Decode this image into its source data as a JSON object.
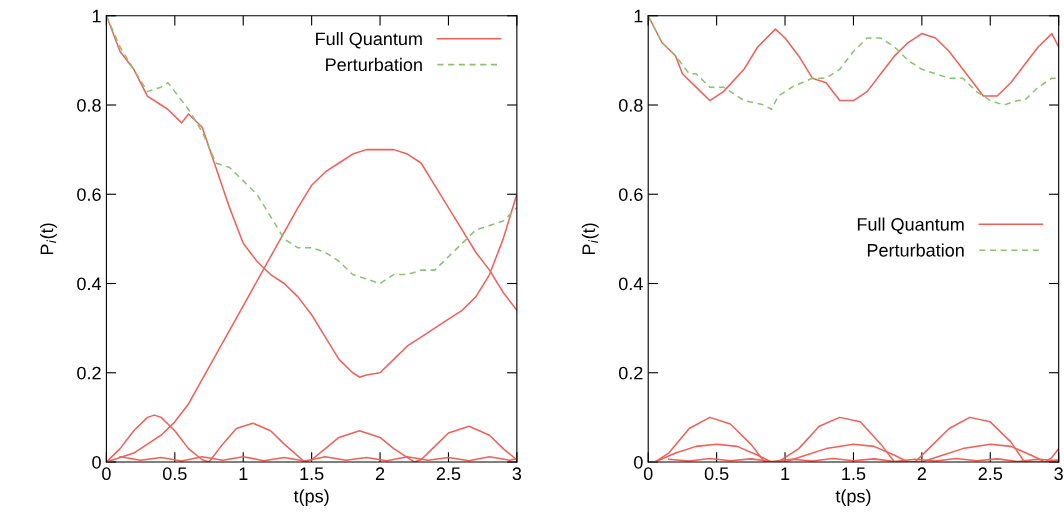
{
  "chart_data": [
    {
      "type": "line",
      "xlabel": "t(ps)",
      "ylabel": "P$_{i}$(t)",
      "xlim": [
        0,
        3
      ],
      "ylim": [
        0,
        1
      ],
      "xticks": [
        0,
        0.5,
        1,
        1.5,
        2,
        2.5,
        3
      ],
      "yticks": [
        0,
        0.2,
        0.4,
        0.6,
        0.8,
        1
      ],
      "legend": "top right",
      "grid": false,
      "series": [
        {
          "name": "Full Quantum",
          "color": "#f06058",
          "line_style": "solid",
          "x": [
            0,
            0.1,
            0.2,
            0.3,
            0.4,
            0.45,
            0.5,
            0.55,
            0.6,
            0.7,
            0.8,
            0.9,
            1.0,
            1.1,
            1.2,
            1.3,
            1.4,
            1.5,
            1.6,
            1.7,
            1.8,
            1.85,
            1.9,
            2.0,
            2.1,
            2.2,
            2.3,
            2.4,
            2.5,
            2.6,
            2.7,
            2.8,
            2.9,
            3.0
          ],
          "values": [
            1,
            0.92,
            0.88,
            0.82,
            0.8,
            0.79,
            0.775,
            0.76,
            0.78,
            0.75,
            0.66,
            0.57,
            0.49,
            0.45,
            0.42,
            0.4,
            0.37,
            0.33,
            0.28,
            0.23,
            0.2,
            0.19,
            0.195,
            0.2,
            0.23,
            0.26,
            0.28,
            0.3,
            0.32,
            0.34,
            0.37,
            0.42,
            0.5,
            0.6
          ]
        },
        {
          "color": "#f06058",
          "line_style": "solid",
          "x": [
            0,
            0.2,
            0.4,
            0.5,
            0.6,
            0.8,
            1.0,
            1.2,
            1.4,
            1.5,
            1.6,
            1.7,
            1.8,
            1.9,
            2.0,
            2.1,
            2.2,
            2.3,
            2.4,
            2.5,
            2.6,
            2.7,
            2.8,
            2.9,
            3.0
          ],
          "values": [
            0,
            0.02,
            0.06,
            0.09,
            0.13,
            0.24,
            0.35,
            0.46,
            0.57,
            0.62,
            0.65,
            0.67,
            0.69,
            0.7,
            0.7,
            0.7,
            0.69,
            0.67,
            0.62,
            0.57,
            0.52,
            0.47,
            0.43,
            0.38,
            0.34
          ]
        },
        {
          "color": "#f06058",
          "line_style": "solid",
          "x": [
            0,
            0.1,
            0.2,
            0.3,
            0.35,
            0.4,
            0.5,
            0.6,
            0.7,
            0.75,
            0.85,
            0.95,
            1.07,
            1.2,
            1.3,
            1.45,
            1.5,
            1.6,
            1.7,
            1.85,
            2.0,
            2.1,
            2.25,
            2.3,
            2.4,
            2.5,
            2.65,
            2.8,
            2.9,
            3.0
          ],
          "values": [
            0,
            0.03,
            0.07,
            0.1,
            0.105,
            0.1,
            0.07,
            0.03,
            0.005,
            0,
            0.04,
            0.075,
            0.087,
            0.07,
            0.04,
            0,
            0.005,
            0.03,
            0.055,
            0.07,
            0.055,
            0.03,
            0,
            0.005,
            0.035,
            0.065,
            0.08,
            0.06,
            0.03,
            0.005
          ]
        },
        {
          "color": "#f06058",
          "line_style": "solid",
          "x": [
            0.1,
            0.25,
            0.4,
            0.55,
            0.7,
            0.85,
            1.0,
            1.15,
            1.3,
            1.45,
            1.6,
            1.75,
            1.9,
            2.05,
            2.2,
            2.35,
            2.5,
            2.65,
            2.8,
            2.95,
            3.0
          ],
          "values": [
            0.012,
            0.004,
            0.01,
            0.002,
            0.012,
            0.004,
            0.012,
            0.003,
            0.01,
            0.002,
            0.012,
            0.004,
            0.01,
            0.003,
            0.012,
            0.004,
            0.01,
            0.003,
            0.012,
            0.004,
            0.008
          ]
        },
        {
          "name": "Perturbation",
          "color": "#88c470",
          "line_style": "dashed",
          "x": [
            0,
            0.1,
            0.2,
            0.3,
            0.4,
            0.45,
            0.5,
            0.6,
            0.7,
            0.8,
            0.9,
            1.0,
            1.1,
            1.2,
            1.3,
            1.4,
            1.5,
            1.6,
            1.7,
            1.8,
            1.9,
            2.0,
            2.1,
            2.2,
            2.3,
            2.4,
            2.5,
            2.6,
            2.7,
            2.8,
            2.9,
            3.0
          ],
          "values": [
            1,
            0.93,
            0.88,
            0.83,
            0.84,
            0.85,
            0.83,
            0.79,
            0.74,
            0.67,
            0.66,
            0.63,
            0.6,
            0.55,
            0.5,
            0.48,
            0.48,
            0.47,
            0.45,
            0.42,
            0.41,
            0.4,
            0.42,
            0.42,
            0.43,
            0.43,
            0.46,
            0.49,
            0.52,
            0.53,
            0.54,
            0.57
          ]
        }
      ]
    },
    {
      "type": "line",
      "xlabel": "t(ps)",
      "ylabel": "P$_{i}$(t)",
      "xlim": [
        0,
        3
      ],
      "ylim": [
        0,
        1
      ],
      "xticks": [
        0,
        0.5,
        1,
        1.5,
        2,
        2.5,
        3
      ],
      "yticks": [
        0,
        0.2,
        0.4,
        0.6,
        0.8,
        1
      ],
      "legend": "center right",
      "grid": false,
      "series": [
        {
          "name": "Full Quantum",
          "color": "#f06058",
          "line_style": "solid",
          "x": [
            0,
            0.1,
            0.2,
            0.25,
            0.35,
            0.45,
            0.55,
            0.7,
            0.8,
            0.93,
            1.0,
            1.1,
            1.2,
            1.3,
            1.4,
            1.5,
            1.6,
            1.7,
            1.8,
            1.9,
            2.0,
            2.1,
            2.2,
            2.3,
            2.35,
            2.45,
            2.55,
            2.65,
            2.75,
            2.85,
            2.95,
            3.0
          ],
          "values": [
            1,
            0.94,
            0.91,
            0.87,
            0.84,
            0.81,
            0.83,
            0.88,
            0.93,
            0.97,
            0.95,
            0.91,
            0.86,
            0.85,
            0.81,
            0.81,
            0.83,
            0.87,
            0.91,
            0.94,
            0.96,
            0.95,
            0.92,
            0.88,
            0.86,
            0.82,
            0.82,
            0.85,
            0.89,
            0.93,
            0.96,
            0.93
          ]
        },
        {
          "color": "#f06058",
          "line_style": "solid",
          "x": [
            0,
            0.05,
            0.15,
            0.3,
            0.45,
            0.6,
            0.75,
            0.85,
            0.95,
            1.1,
            1.25,
            1.4,
            1.55,
            1.7,
            1.8,
            1.95,
            2.05,
            2.2,
            2.35,
            2.5,
            2.65,
            2.75,
            2.9,
            2.95,
            3.0
          ],
          "values": [
            0,
            0,
            0.02,
            0.075,
            0.1,
            0.085,
            0.04,
            0,
            0,
            0.03,
            0.08,
            0.1,
            0.09,
            0.04,
            0,
            0,
            0.03,
            0.075,
            0.1,
            0.09,
            0.045,
            0,
            0,
            0.01,
            0.03
          ]
        },
        {
          "color": "#f06058",
          "line_style": "solid",
          "x": [
            0.05,
            0.2,
            0.35,
            0.5,
            0.65,
            0.8,
            0.9,
            1.0,
            1.15,
            1.3,
            1.5,
            1.65,
            1.8,
            1.9,
            2.0,
            2.15,
            2.3,
            2.5,
            2.65,
            2.8,
            2.9,
            3.0
          ],
          "values": [
            0,
            0.02,
            0.035,
            0.04,
            0.035,
            0.015,
            0,
            0,
            0.015,
            0.03,
            0.04,
            0.035,
            0.015,
            0,
            0,
            0.015,
            0.03,
            0.04,
            0.035,
            0.015,
            0,
            0.005
          ]
        },
        {
          "color": "#f06058",
          "line_style": "solid",
          "x": [
            0.15,
            0.3,
            0.45,
            0.6,
            0.75,
            0.9,
            1.05,
            1.2,
            1.35,
            1.5,
            1.65,
            1.8,
            1.95,
            2.1,
            2.25,
            2.4,
            2.55,
            2.7,
            2.85,
            3.0
          ],
          "values": [
            0.006,
            0.002,
            0.008,
            0.003,
            0.007,
            0.001,
            0.006,
            0.002,
            0.008,
            0.003,
            0.007,
            0.001,
            0.006,
            0.002,
            0.008,
            0.003,
            0.007,
            0.001,
            0.006,
            0.003
          ]
        },
        {
          "name": "Perturbation",
          "color": "#88c470",
          "line_style": "dashed",
          "x": [
            0,
            0.1,
            0.2,
            0.3,
            0.35,
            0.45,
            0.55,
            0.7,
            0.85,
            0.9,
            0.95,
            1.05,
            1.2,
            1.3,
            1.4,
            1.5,
            1.6,
            1.7,
            1.8,
            1.9,
            2.0,
            2.1,
            2.2,
            2.3,
            2.4,
            2.5,
            2.6,
            2.7,
            2.75,
            2.85,
            2.95,
            3.0
          ],
          "values": [
            1,
            0.94,
            0.91,
            0.87,
            0.87,
            0.84,
            0.84,
            0.81,
            0.8,
            0.79,
            0.82,
            0.84,
            0.86,
            0.86,
            0.88,
            0.92,
            0.95,
            0.95,
            0.93,
            0.9,
            0.88,
            0.87,
            0.86,
            0.86,
            0.83,
            0.81,
            0.8,
            0.81,
            0.81,
            0.84,
            0.86,
            0.86
          ]
        }
      ]
    }
  ]
}
